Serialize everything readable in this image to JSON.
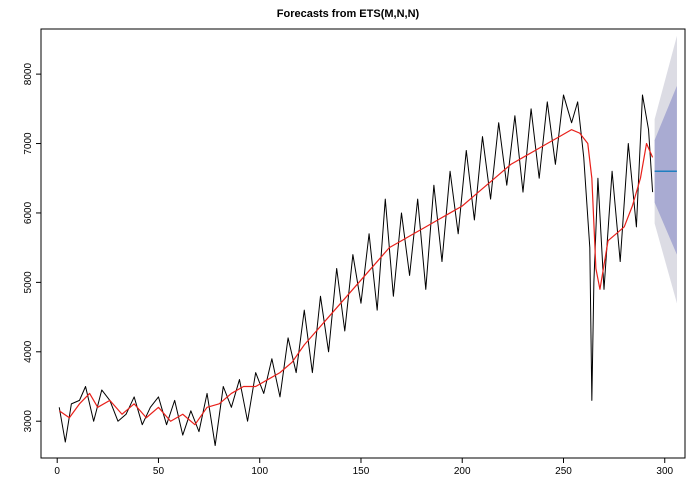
{
  "chart_data": {
    "type": "line",
    "title": "Forecasts from ETS(M,N,N)",
    "xlabel": "",
    "ylabel": "",
    "xlim": [
      -8,
      310
    ],
    "ylim": [
      2470,
      8650
    ],
    "x_ticks": [
      0,
      50,
      100,
      150,
      200,
      250,
      300
    ],
    "x_tick_labels": [
      "0",
      "50",
      "100",
      "150",
      "200",
      "250",
      "300"
    ],
    "y_ticks": [
      3000,
      4000,
      5000,
      6000,
      7000,
      8000
    ],
    "y_tick_labels": [
      "3000",
      "4000",
      "5000",
      "6000",
      "7000",
      "8000"
    ],
    "grid": false,
    "legend": "none",
    "colors": {
      "observed": "#000000",
      "fitted": "#e8201a",
      "forecast": "#1f7fc0",
      "pi80": "#a9abd2",
      "pi95": "#dcdce4"
    },
    "observed": {
      "x": [
        1,
        4,
        7,
        11,
        14,
        18,
        22,
        26,
        30,
        34,
        38,
        42,
        46,
        50,
        54,
        58,
        62,
        66,
        70,
        74,
        78,
        82,
        86,
        90,
        94,
        98,
        102,
        106,
        110,
        114,
        118,
        122,
        126,
        130,
        134,
        138,
        142,
        146,
        150,
        154,
        158,
        162,
        166,
        170,
        174,
        178,
        182,
        186,
        190,
        194,
        198,
        202,
        206,
        210,
        214,
        218,
        222,
        226,
        230,
        234,
        238,
        242,
        246,
        250,
        254,
        257,
        260,
        263,
        264,
        265,
        267,
        270,
        274,
        278,
        282,
        286,
        289,
        292,
        294
      ],
      "y": [
        3200,
        2700,
        3250,
        3300,
        3500,
        3000,
        3450,
        3300,
        3000,
        3100,
        3350,
        2950,
        3200,
        3350,
        2950,
        3300,
        2800,
        3150,
        2850,
        3400,
        2650,
        3500,
        3200,
        3600,
        3000,
        3700,
        3400,
        3900,
        3350,
        4200,
        3700,
        4600,
        3700,
        4800,
        4000,
        5200,
        4300,
        5400,
        4700,
        5700,
        4600,
        6200,
        4800,
        6000,
        5100,
        6200,
        4900,
        6400,
        5300,
        6600,
        5700,
        6900,
        5900,
        7100,
        6200,
        7300,
        6400,
        7400,
        6300,
        7500,
        6500,
        7600,
        6700,
        7700,
        7300,
        7600,
        6800,
        5500,
        3300,
        5000,
        6500,
        4900,
        6600,
        5300,
        7000,
        5800,
        7700,
        7200,
        6300
      ]
    },
    "fitted": {
      "x": [
        1,
        6,
        11,
        16,
        20,
        26,
        32,
        38,
        44,
        50,
        56,
        62,
        68,
        74,
        80,
        86,
        92,
        98,
        104,
        110,
        116,
        122,
        128,
        134,
        140,
        146,
        152,
        158,
        164,
        170,
        176,
        182,
        188,
        194,
        200,
        206,
        212,
        218,
        224,
        230,
        236,
        242,
        248,
        254,
        258,
        262,
        264,
        266,
        268,
        272,
        276,
        280,
        284,
        288,
        291,
        294
      ],
      "y": [
        3150,
        3050,
        3250,
        3400,
        3200,
        3300,
        3100,
        3250,
        3050,
        3200,
        3000,
        3100,
        2950,
        3200,
        3250,
        3400,
        3500,
        3500,
        3600,
        3700,
        3850,
        4100,
        4300,
        4500,
        4700,
        4900,
        5100,
        5300,
        5500,
        5600,
        5700,
        5800,
        5900,
        6000,
        6100,
        6250,
        6400,
        6550,
        6700,
        6800,
        6900,
        7000,
        7100,
        7200,
        7150,
        7000,
        6500,
        5200,
        4900,
        5600,
        5700,
        5800,
        6100,
        6500,
        7000,
        6800
      ]
    },
    "forecast": {
      "x_start": 295,
      "x_end": 306,
      "point": 6600,
      "pi80": {
        "lower_end": 5400,
        "upper_end": 7830
      },
      "pi95": {
        "lower_end": 4700,
        "upper_end": 8550
      }
    }
  }
}
